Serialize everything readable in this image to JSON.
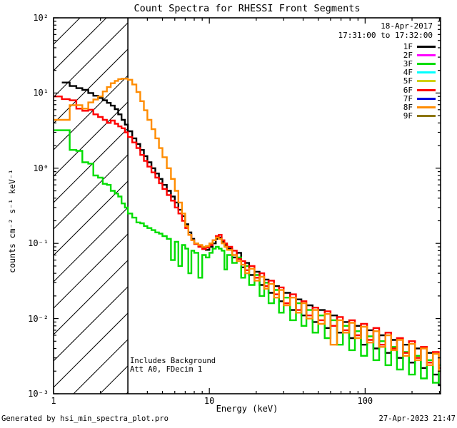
{
  "footer": {
    "left": "Generated by hsi_min_spectra_plot.pro",
    "right": "27-Apr-2023 21:47"
  },
  "chart_data": {
    "type": "line",
    "line_style": "steps",
    "scale": "log-log",
    "title": "Count Spectra for RHESSI Front Segments",
    "xlabel": "Energy (keV)",
    "ylabel": "counts cm⁻² s⁻¹ keV⁻¹",
    "xlim": [
      1,
      305
    ],
    "ylim_exp": [
      -3,
      2
    ],
    "xticks": [
      {
        "value": 1,
        "label": "1"
      },
      {
        "value": 10,
        "label": "10"
      },
      {
        "value": 100,
        "label": "100"
      }
    ],
    "yticks": [
      {
        "exp": 2,
        "label": "10²"
      },
      {
        "exp": 1,
        "label": "10¹"
      },
      {
        "exp": 0,
        "label": "10⁰"
      },
      {
        "exp": -1,
        "label": "10⁻¹"
      },
      {
        "exp": -2,
        "label": "10⁻²"
      },
      {
        "exp": -3,
        "label": "10⁻³"
      }
    ],
    "grid": false,
    "hatch_region": {
      "xmin": 1,
      "xmax": 3,
      "style": "diagonal-hatch"
    },
    "annotations": [
      "Includes Background",
      "Att A0, FDecim 1"
    ],
    "legend": {
      "position": "top-right-inside",
      "date": "18-Apr-2017",
      "interval": "17:31:00 to 17:32:00",
      "entries": [
        {
          "label": "1F",
          "color": "#000000"
        },
        {
          "label": "2F",
          "color": "#ff00ff"
        },
        {
          "label": "3F",
          "color": "#00dd00"
        },
        {
          "label": "4F",
          "color": "#00ffff"
        },
        {
          "label": "5F",
          "color": "#d0d000"
        },
        {
          "label": "6F",
          "color": "#ff0000"
        },
        {
          "label": "7F",
          "color": "#0000dd"
        },
        {
          "label": "8F",
          "color": "#ff8c00"
        },
        {
          "label": "9F",
          "color": "#8c7500"
        }
      ]
    },
    "energy_bins": [
      1.0,
      1.13,
      1.27,
      1.4,
      1.53,
      1.67,
      1.8,
      1.93,
      2.07,
      2.2,
      2.33,
      2.47,
      2.6,
      2.73,
      2.87,
      3.0,
      3.2,
      3.4,
      3.6,
      3.8,
      4.0,
      4.25,
      4.5,
      4.75,
      5.0,
      5.33,
      5.67,
      6.0,
      6.33,
      6.67,
      7.0,
      7.33,
      7.67,
      8.0,
      8.5,
      9.0,
      9.5,
      10.0,
      10.5,
      11.0,
      11.5,
      12.0,
      12.5,
      13.0,
      14.0,
      15.0,
      16.0,
      17.0,
      18.0,
      19.5,
      21.0,
      22.5,
      24.0,
      26.0,
      28.0,
      30.0,
      33.0,
      36.0,
      39.0,
      42.0,
      46.0,
      50.0,
      55.0,
      60.0,
      66.0,
      72.0,
      79.0,
      86.0,
      94.0,
      103.0,
      113.0,
      123.0,
      135.0,
      147.0,
      160.0,
      175.0,
      191.0,
      209.0,
      228.0,
      249.0,
      272.0,
      297.0
    ],
    "series": [
      {
        "name": "1F",
        "color": "#000000",
        "values": [
          null,
          13.8,
          12.4,
          11.6,
          11.0,
          10.0,
          9.2,
          8.6,
          8.0,
          7.4,
          6.8,
          6.1,
          5.2,
          4.4,
          3.8,
          3.1,
          2.5,
          2.1,
          1.75,
          1.45,
          1.2,
          1.0,
          0.85,
          0.72,
          0.6,
          0.5,
          0.42,
          0.35,
          0.28,
          0.23,
          0.18,
          0.14,
          0.115,
          0.1,
          0.092,
          0.085,
          0.082,
          0.09,
          0.1,
          0.115,
          0.12,
          0.105,
          0.095,
          0.085,
          0.065,
          0.075,
          0.048,
          0.055,
          0.038,
          0.042,
          0.028,
          0.033,
          0.022,
          0.027,
          0.017,
          0.022,
          0.013,
          0.018,
          0.011,
          0.015,
          0.009,
          0.013,
          0.0075,
          0.011,
          0.0065,
          0.009,
          0.0055,
          0.008,
          0.0045,
          0.007,
          0.004,
          0.006,
          0.0035,
          0.0052,
          0.003,
          0.0045,
          0.0026,
          0.004,
          0.0022,
          0.0035,
          0.0018,
          0.0013
        ]
      },
      {
        "name": "3F",
        "color": "#00dd00",
        "values": [
          3.2,
          3.2,
          1.75,
          1.7,
          1.2,
          1.15,
          0.8,
          0.75,
          0.62,
          0.6,
          0.5,
          0.46,
          0.42,
          0.34,
          0.3,
          0.25,
          0.22,
          0.19,
          0.185,
          0.17,
          0.16,
          0.15,
          0.14,
          0.135,
          0.125,
          0.115,
          0.06,
          0.105,
          0.05,
          0.095,
          0.085,
          0.04,
          0.08,
          0.075,
          0.035,
          0.07,
          0.065,
          0.075,
          0.085,
          0.09,
          0.085,
          0.08,
          0.045,
          0.07,
          0.055,
          0.065,
          0.035,
          0.05,
          0.028,
          0.038,
          0.02,
          0.03,
          0.016,
          0.024,
          0.012,
          0.019,
          0.0095,
          0.016,
          0.008,
          0.013,
          0.0065,
          0.011,
          0.0055,
          0.0095,
          0.0045,
          0.008,
          0.0038,
          0.0068,
          0.0032,
          0.0058,
          0.0028,
          0.005,
          0.0024,
          0.0042,
          0.0021,
          0.0036,
          0.0018,
          0.0032,
          0.0016,
          0.0028,
          0.0014,
          0.0024
        ]
      },
      {
        "name": "6F",
        "color": "#ff0000",
        "values": [
          9.0,
          8.3,
          8.0,
          6.2,
          5.8,
          6.0,
          5.2,
          4.8,
          4.4,
          4.0,
          4.3,
          3.9,
          3.6,
          3.4,
          3.0,
          2.6,
          2.2,
          1.85,
          1.5,
          1.25,
          1.05,
          0.88,
          0.75,
          0.63,
          0.53,
          0.44,
          0.37,
          0.3,
          0.25,
          0.2,
          0.16,
          0.13,
          0.11,
          0.098,
          0.09,
          0.084,
          0.088,
          0.095,
          0.11,
          0.125,
          0.13,
          0.11,
          0.1,
          0.09,
          0.08,
          0.062,
          0.058,
          0.044,
          0.05,
          0.035,
          0.04,
          0.027,
          0.032,
          0.021,
          0.026,
          0.016,
          0.021,
          0.013,
          0.017,
          0.011,
          0.014,
          0.0095,
          0.0125,
          0.008,
          0.0105,
          0.007,
          0.0095,
          0.006,
          0.0085,
          0.0052,
          0.0075,
          0.0045,
          0.0065,
          0.004,
          0.0055,
          0.0035,
          0.005,
          0.003,
          0.0042,
          0.0026,
          0.0036,
          0.0022
        ]
      },
      {
        "name": "8F",
        "color": "#ff8c00",
        "values": [
          4.4,
          4.4,
          6.9,
          6.9,
          6.2,
          7.5,
          8.2,
          9.0,
          10.5,
          12.0,
          13.5,
          14.5,
          15.3,
          15.5,
          15.5,
          15.0,
          13.0,
          10.3,
          7.8,
          5.9,
          4.4,
          3.3,
          2.5,
          1.85,
          1.4,
          1.0,
          0.72,
          0.5,
          0.35,
          0.25,
          0.17,
          0.13,
          0.11,
          0.1,
          0.095,
          0.09,
          0.092,
          0.1,
          0.11,
          0.12,
          0.115,
          0.1,
          0.09,
          0.082,
          0.07,
          0.058,
          0.052,
          0.04,
          0.046,
          0.032,
          0.036,
          0.025,
          0.029,
          0.019,
          0.024,
          0.015,
          0.019,
          0.012,
          0.016,
          0.01,
          0.013,
          0.0085,
          0.0115,
          0.0045,
          0.0095,
          0.0065,
          0.0088,
          0.0055,
          0.0078,
          0.0048,
          0.0068,
          0.0042,
          0.006,
          0.0038,
          0.0052,
          0.0032,
          0.0046,
          0.0028,
          0.004,
          0.0024,
          0.0034,
          0.002
        ]
      }
    ]
  }
}
